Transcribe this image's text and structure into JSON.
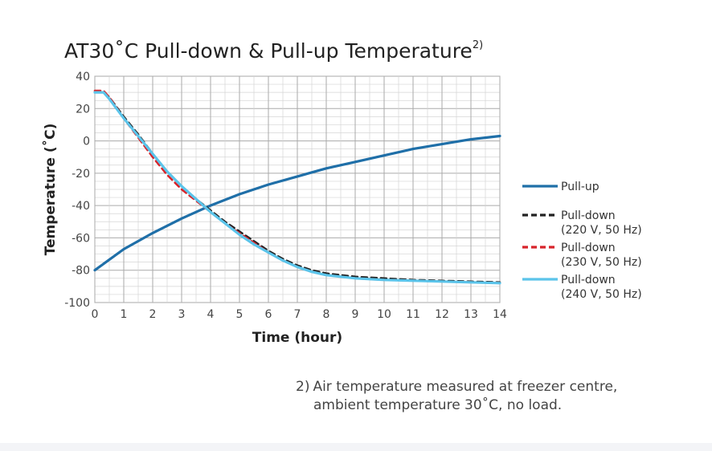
{
  "chart_data": {
    "type": "line",
    "title": "AT30˚C Pull-down & Pull-up Temperature",
    "title_superscript": "2)",
    "xlabel": "Time (hour)",
    "ylabel": "Temperature (˚C)",
    "xlim": [
      0,
      14
    ],
    "ylim": [
      -100,
      40
    ],
    "x_ticks": [
      "0",
      "1",
      "2",
      "3",
      "4",
      "5",
      "6",
      "7",
      "8",
      "9",
      "10",
      "11",
      "12",
      "13",
      "14"
    ],
    "y_ticks": [
      "40",
      "20",
      "0",
      "-20",
      "-40",
      "-60",
      "-80",
      "-100"
    ],
    "grid": true,
    "legend_position": "right",
    "series": [
      {
        "name": "Pull-up",
        "color": "#1f6fa8",
        "style": "solid",
        "x": [
          0,
          1,
          2,
          3,
          4,
          5,
          6,
          7,
          8,
          9,
          10,
          11,
          12,
          13,
          14
        ],
        "y": [
          -80,
          -67,
          -57,
          -48,
          -40,
          -33,
          -27,
          -22,
          -17,
          -13,
          -9,
          -5,
          -2,
          1,
          3
        ]
      },
      {
        "name": "Pull-down",
        "name_line2": "(220 V, 50 Hz)",
        "color": "#222222",
        "style": "dashed",
        "x": [
          0,
          0.3,
          0.5,
          1,
          1.5,
          2,
          2.5,
          3,
          3.5,
          4,
          4.5,
          5,
          5.5,
          6,
          6.5,
          7,
          7.5,
          8,
          9,
          10,
          11,
          12,
          13,
          14
        ],
        "y": [
          30,
          30,
          27,
          15,
          4,
          -8,
          -19,
          -28,
          -36,
          -43,
          -50,
          -56,
          -62,
          -68,
          -73,
          -77,
          -80,
          -82,
          -84,
          -85,
          -86,
          -86.5,
          -87,
          -87.5
        ]
      },
      {
        "name": "Pull-down",
        "name_line2": "(230 V, 50 Hz)",
        "color": "#d8232a",
        "style": "dashed",
        "x": [
          0,
          0.3,
          0.5,
          1,
          1.5,
          2,
          2.5,
          3,
          3.5,
          4,
          4.5,
          5,
          5.5,
          6,
          6.5,
          7,
          7.5,
          8,
          9,
          10,
          11,
          12,
          13,
          14
        ],
        "y": [
          31,
          31,
          27,
          14,
          2,
          -10,
          -21,
          -30,
          -37,
          -44,
          -51,
          -57,
          -63,
          -69,
          -74,
          -78,
          -81,
          -83,
          -85,
          -86,
          -86.5,
          -87,
          -87.5,
          -88
        ]
      },
      {
        "name": "Pull-down",
        "name_line2": "(240 V, 50 Hz)",
        "color": "#5bc4ea",
        "style": "solid",
        "x": [
          0,
          0.3,
          0.5,
          1,
          1.5,
          2,
          2.5,
          3,
          3.5,
          4,
          4.5,
          5,
          5.5,
          6,
          6.5,
          7,
          7.5,
          8,
          9,
          10,
          11,
          12,
          13,
          14
        ],
        "y": [
          30,
          30,
          26,
          14,
          3,
          -8,
          -19,
          -28,
          -36,
          -44,
          -51,
          -58,
          -64,
          -69,
          -74,
          -78,
          -81,
          -83,
          -85,
          -86,
          -86.5,
          -87,
          -87.5,
          -88
        ]
      }
    ]
  },
  "footnote": {
    "marker": "2)",
    "line1": "Air temperature measured at freezer centre,",
    "line2": "ambient temperature 30˚C, no load."
  }
}
